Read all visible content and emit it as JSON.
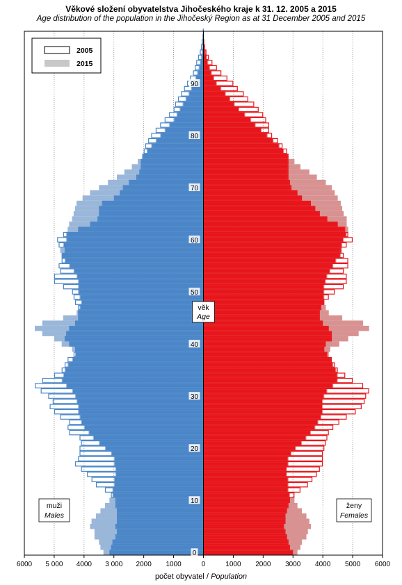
{
  "title": "Věkové složení obyvatelstva  Jihočeského  kraje k 31. 12. 2005 a 2015",
  "subtitle": "Age distribution of the population  in the Jihočeský Region as at 31 December 2005 and 2015",
  "xlabel_cz": "počet obyvatel /",
  "xlabel_en": "Population",
  "center_label_cz": "věk",
  "center_label_en": "Age",
  "males_label_cz": "muži",
  "males_label_en": "Males",
  "females_label_cz": "ženy",
  "females_label_en": "Females",
  "colors": {
    "male_2005": "#4a86c8",
    "male_2015": "#9ab7da",
    "female_2005": "#e8151b",
    "female_2015": "#d89292"
  },
  "chart_data": {
    "type": "bar",
    "orientation": "horizontal-pyramid",
    "xlim": [
      -6000,
      6000
    ],
    "ylim": [
      0,
      100
    ],
    "x_ticks": [
      -6000,
      -5000,
      -4000,
      -3000,
      -2000,
      -1000,
      0,
      1000,
      2000,
      3000,
      4000,
      5000,
      6000
    ],
    "x_tick_labels": [
      "6000",
      "5 000",
      "4000",
      "3 000",
      "2000",
      "1000",
      "0",
      "1000",
      "2000",
      "3000",
      "4000",
      "5000",
      "6000"
    ],
    "y_ticks": [
      0,
      10,
      20,
      30,
      40,
      50,
      60,
      70,
      80,
      90
    ],
    "grid": true,
    "legend_placement": "top-left",
    "legend": [
      "2005",
      "2015"
    ],
    "ages": [
      0,
      1,
      2,
      3,
      4,
      5,
      6,
      7,
      8,
      9,
      10,
      11,
      12,
      13,
      14,
      15,
      16,
      17,
      18,
      19,
      20,
      21,
      22,
      23,
      24,
      25,
      26,
      27,
      28,
      29,
      30,
      31,
      32,
      33,
      34,
      35,
      36,
      37,
      38,
      39,
      40,
      41,
      42,
      43,
      44,
      45,
      46,
      47,
      48,
      49,
      50,
      51,
      52,
      53,
      54,
      55,
      56,
      57,
      58,
      59,
      60,
      61,
      62,
      63,
      64,
      65,
      66,
      67,
      68,
      69,
      70,
      71,
      72,
      73,
      74,
      75,
      76,
      77,
      78,
      79,
      80,
      81,
      82,
      83,
      84,
      85,
      86,
      87,
      88,
      89,
      90,
      91,
      92,
      93,
      94,
      95,
      96,
      97,
      98,
      99,
      100
    ],
    "series": [
      {
        "name": "2005",
        "side": "males",
        "values": [
          3150,
          3100,
          3050,
          2950,
          2900,
          2950,
          2900,
          2900,
          2900,
          2950,
          2950,
          3100,
          3300,
          3600,
          3750,
          3900,
          4100,
          4300,
          4200,
          4150,
          4150,
          4100,
          4150,
          4500,
          4550,
          4500,
          4800,
          5000,
          5150,
          5050,
          5200,
          5450,
          5650,
          5400,
          5000,
          4750,
          4650,
          4550,
          4350,
          4300,
          4500,
          4650,
          4600,
          4500,
          4300,
          4200,
          4200,
          4200,
          4300,
          4350,
          4400,
          4700,
          5000,
          5000,
          4800,
          4850,
          4750,
          4750,
          4650,
          4850,
          4900,
          4700,
          4200,
          3800,
          3550,
          3500,
          3500,
          3400,
          3000,
          2800,
          2700,
          2500,
          2250,
          2150,
          2100,
          2100,
          2050,
          2000,
          1950,
          1850,
          1750,
          1600,
          1450,
          1300,
          1150,
          1000,
          950,
          850,
          750,
          650,
          550,
          450,
          350,
          290,
          240,
          180,
          120,
          80,
          55,
          30,
          20
        ]
      },
      {
        "name": "2015",
        "side": "males",
        "values": [
          3350,
          3450,
          3500,
          3650,
          3650,
          3800,
          3750,
          3600,
          3450,
          3300,
          3150,
          3050,
          3050,
          3000,
          3000,
          2950,
          2950,
          3000,
          3000,
          3100,
          3300,
          3500,
          3700,
          3850,
          4000,
          4100,
          4150,
          4200,
          4200,
          4250,
          4300,
          4400,
          4600,
          4750,
          4700,
          4650,
          4550,
          4400,
          4300,
          4400,
          4750,
          5000,
          5400,
          5650,
          5400,
          4700,
          4250,
          4150,
          4100,
          4150,
          4200,
          4200,
          4200,
          4250,
          4350,
          4500,
          4650,
          4750,
          4800,
          4700,
          4600,
          4600,
          4550,
          4500,
          4400,
          4350,
          4300,
          4250,
          4050,
          3800,
          3500,
          3200,
          2900,
          2650,
          2400,
          2200,
          2050,
          1900,
          1750,
          1600,
          1450,
          1300,
          1150,
          1000,
          900,
          800,
          700,
          600,
          500,
          420,
          340,
          270,
          210,
          160,
          120,
          85,
          55,
          35,
          20,
          12,
          6
        ]
      },
      {
        "name": "2005",
        "side": "females",
        "values": [
          3000,
          2900,
          2850,
          2800,
          2750,
          2700,
          2750,
          2750,
          2800,
          2850,
          2900,
          3050,
          3250,
          3500,
          3650,
          3800,
          3900,
          4000,
          4000,
          4000,
          4050,
          4100,
          4150,
          4200,
          4350,
          4550,
          4800,
          5100,
          5300,
          5400,
          5450,
          5550,
          5350,
          5000,
          4750,
          4500,
          4400,
          4300,
          4150,
          4050,
          4100,
          4300,
          4300,
          4200,
          4000,
          3900,
          3900,
          3950,
          4050,
          4200,
          4400,
          4700,
          4800,
          4800,
          4700,
          4850,
          4850,
          4700,
          4600,
          4800,
          5000,
          4850,
          4750,
          4500,
          4150,
          3900,
          3750,
          3600,
          3300,
          3150,
          2950,
          2900,
          2850,
          2850,
          2850,
          2850,
          2850,
          2800,
          2650,
          2500,
          2300,
          2200,
          2200,
          2100,
          2000,
          1850,
          1700,
          1500,
          1350,
          1150,
          1000,
          800,
          600,
          450,
          300,
          180,
          100,
          50,
          25,
          10,
          5
        ]
      },
      {
        "name": "2015",
        "side": "females",
        "values": [
          3150,
          3250,
          3300,
          3450,
          3500,
          3600,
          3550,
          3450,
          3300,
          3150,
          3050,
          2900,
          2850,
          2850,
          2850,
          2800,
          2800,
          2850,
          2850,
          2950,
          3100,
          3300,
          3450,
          3600,
          3750,
          3850,
          3950,
          4000,
          4000,
          4000,
          4050,
          4150,
          4350,
          4500,
          4500,
          4450,
          4350,
          4300,
          4200,
          4250,
          4550,
          4850,
          5200,
          5550,
          5350,
          4650,
          4200,
          4100,
          4050,
          4050,
          4050,
          4050,
          4100,
          4150,
          4250,
          4350,
          4450,
          4600,
          4650,
          4650,
          4700,
          4800,
          4850,
          4800,
          4800,
          4700,
          4650,
          4600,
          4500,
          4400,
          4300,
          4100,
          3800,
          3550,
          3250,
          3050,
          2850,
          2700,
          2550,
          2350,
          2150,
          1950,
          1750,
          1600,
          1400,
          1200,
          1050,
          900,
          750,
          600,
          450,
          360,
          280,
          220,
          160,
          120,
          80,
          50,
          30,
          15,
          8
        ]
      }
    ]
  }
}
